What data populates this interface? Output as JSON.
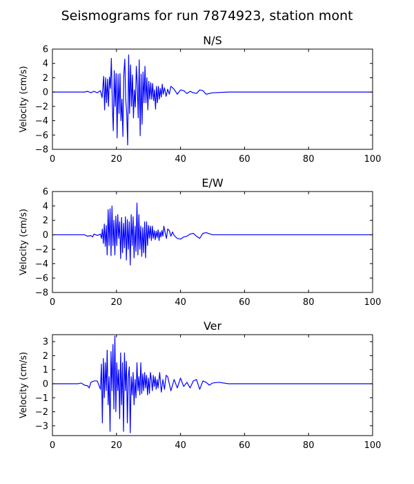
{
  "figure": {
    "title": "Seismograms for run 7874923, station mont"
  },
  "chart_data": [
    {
      "type": "line",
      "title": "N/S",
      "xlabel": "",
      "ylabel": "Velocity (cm/s)",
      "xlim": [
        0,
        100
      ],
      "ylim": [
        -8,
        6
      ],
      "xticks": [
        0,
        20,
        40,
        60,
        80,
        100
      ],
      "yticks": [
        -8,
        -6,
        -4,
        -2,
        0,
        2,
        4,
        6
      ],
      "grid": false,
      "color": "#0000ff",
      "series": [
        {
          "x": [
            0,
            10,
            11,
            12,
            13,
            14,
            15,
            15.5,
            16,
            16.3,
            16.6,
            16.9,
            17.2,
            17.5,
            17.8,
            18.1,
            18.4,
            18.7,
            19,
            19.3,
            19.6,
            19.9,
            20.2,
            20.5,
            20.8,
            21.1,
            21.4,
            21.7,
            22,
            22.3,
            22.6,
            22.9,
            23.2,
            23.5,
            23.8,
            24.1,
            24.4,
            24.7,
            25,
            25.3,
            25.6,
            25.9,
            26.2,
            26.5,
            26.8,
            27.1,
            27.4,
            27.7,
            28,
            28.3,
            28.6,
            28.9,
            29.2,
            29.5,
            29.8,
            30.1,
            30.4,
            30.7,
            31,
            31.3,
            31.6,
            31.9,
            32.2,
            32.5,
            32.8,
            33.1,
            33.4,
            33.7,
            34,
            34.3,
            34.6,
            35,
            35.5,
            36,
            36.5,
            37,
            38,
            39,
            40,
            41,
            42,
            43,
            44,
            45,
            46,
            47,
            48,
            50,
            55,
            60,
            100
          ],
          "y": [
            0,
            0,
            0.1,
            -0.1,
            0.1,
            -0.1,
            0.2,
            -0.8,
            2.2,
            -2.5,
            2,
            -1.5,
            1.8,
            -2,
            2.1,
            0.5,
            4.7,
            -1.5,
            -5.4,
            3,
            -2,
            2.6,
            -6.4,
            2.5,
            -3,
            2.6,
            -4,
            -1,
            -6.2,
            2.5,
            4.6,
            -1,
            -3,
            -7.4,
            5.2,
            -3,
            3.8,
            -2,
            2.4,
            -3.6,
            0.3,
            -2.1,
            3.6,
            1,
            -3.6,
            4.5,
            -6.1,
            2.5,
            -4.5,
            2.8,
            -1.5,
            3.6,
            -1.5,
            2,
            -2.5,
            1.5,
            -1,
            1.3,
            -1,
            1.2,
            -1.2,
            0.3,
            -2.4,
            0.8,
            -1.5,
            0.8,
            -1,
            0.5,
            -0.7,
            1.1,
            -0.3,
            0.6,
            -0.6,
            0.4,
            -0.3,
            0.8,
            0.4,
            -0.3,
            0.3,
            0.2,
            -0.2,
            0.1,
            -0.1,
            -0.2,
            0.3,
            0.2,
            -0.3,
            -0.1,
            0,
            0,
            0
          ]
        }
      ]
    },
    {
      "type": "line",
      "title": "E/W",
      "xlabel": "",
      "ylabel": "Velocity (cm/s)",
      "xlim": [
        0,
        100
      ],
      "ylim": [
        -8,
        6
      ],
      "xticks": [
        0,
        20,
        40,
        60,
        80,
        100
      ],
      "yticks": [
        -8,
        -6,
        -4,
        -2,
        0,
        2,
        4,
        6
      ],
      "grid": false,
      "color": "#0000ff",
      "series": [
        {
          "x": [
            0,
            10,
            11,
            12,
            12.5,
            13,
            14,
            15,
            15.3,
            15.6,
            15.9,
            16.2,
            16.5,
            16.8,
            17.1,
            17.4,
            17.7,
            18,
            18.3,
            18.6,
            18.9,
            19.2,
            19.5,
            19.8,
            20.1,
            20.4,
            20.7,
            21,
            21.3,
            21.6,
            21.9,
            22.2,
            22.5,
            22.8,
            23.1,
            23.4,
            23.7,
            24,
            24.3,
            24.6,
            24.9,
            25.2,
            25.5,
            25.8,
            26.1,
            26.4,
            26.7,
            27,
            27.3,
            27.6,
            27.9,
            28.2,
            28.5,
            28.8,
            29.1,
            29.4,
            29.7,
            30,
            30.3,
            30.6,
            30.9,
            31.2,
            31.5,
            31.8,
            32.1,
            32.4,
            32.7,
            33,
            33.3,
            33.6,
            33.9,
            34.2,
            34.5,
            34.8,
            35.2,
            35.6,
            36,
            36.5,
            37,
            37.5,
            38,
            39,
            40,
            41,
            42,
            43,
            44,
            45,
            46,
            47,
            48,
            50,
            55,
            60,
            100
          ],
          "y": [
            0,
            0,
            -0.2,
            -0.1,
            -0.3,
            0.1,
            -0.1,
            0.1,
            -0.5,
            0.8,
            -1.2,
            1.5,
            -1.6,
            1.3,
            -2.8,
            3.5,
            -1.5,
            3.6,
            -2.9,
            4,
            -1.5,
            2,
            -2.8,
            2.6,
            -1.5,
            2.8,
            -0.5,
            1.8,
            -3.3,
            2.4,
            -2.5,
            1.6,
            -1.8,
            2.5,
            -3.5,
            2.1,
            -2,
            1.8,
            -4.2,
            2.8,
            -1.5,
            2.5,
            -3.2,
            1.2,
            -2.3,
            4.4,
            -2.8,
            2.8,
            -2,
            1.2,
            -3,
            1,
            -2.5,
            1.8,
            -3.2,
            1.8,
            -1.5,
            1.3,
            -0.5,
            1.2,
            -0.8,
            1.2,
            -0.5,
            0.6,
            -0.7,
            0.5,
            -0.4,
            0.7,
            -0.8,
            0.4,
            -0.3,
            0.6,
            -0.2,
            1.2,
            0.3,
            -0.5,
            0.8,
            0.6,
            -0.2,
            0.4,
            -0.1,
            -0.5,
            -0.6,
            -0.3,
            -0.2,
            0.1,
            0.2,
            -0.2,
            -0.5,
            0.2,
            0.3,
            0,
            0,
            0,
            0
          ]
        }
      ]
    },
    {
      "type": "line",
      "title": "Ver",
      "xlabel": "",
      "ylabel": "Velocity (cm/s)",
      "xlim": [
        0,
        100
      ],
      "ylim": [
        -3.7,
        3.5
      ],
      "xticks": [
        0,
        20,
        40,
        60,
        80,
        100
      ],
      "yticks": [
        -3,
        -2,
        -1,
        0,
        1,
        2,
        3
      ],
      "grid": false,
      "color": "#0000ff",
      "series": [
        {
          "x": [
            0,
            8,
            9,
            10,
            11,
            11.5,
            12,
            13,
            14,
            15,
            15.3,
            15.6,
            15.9,
            16.2,
            16.5,
            16.8,
            17.1,
            17.4,
            17.7,
            18,
            18.3,
            18.6,
            18.9,
            19.2,
            19.5,
            19.8,
            20.1,
            20.4,
            20.7,
            21,
            21.3,
            21.6,
            21.9,
            22.2,
            22.5,
            22.8,
            23.1,
            23.4,
            23.7,
            24,
            24.3,
            24.6,
            24.9,
            25.2,
            25.5,
            25.8,
            26.1,
            26.4,
            26.7,
            27,
            27.3,
            27.6,
            27.9,
            28.2,
            28.5,
            28.8,
            29.1,
            29.4,
            29.7,
            30,
            30.3,
            30.6,
            30.9,
            31.2,
            31.5,
            31.8,
            32.1,
            32.4,
            32.7,
            33,
            33.5,
            34,
            34.5,
            35,
            35.5,
            36,
            37,
            38,
            39,
            40,
            41,
            42,
            43,
            44,
            45,
            46,
            47,
            48,
            49,
            50,
            52,
            55,
            60,
            100
          ],
          "y": [
            0,
            0,
            0.05,
            -0.1,
            -0.15,
            -0.3,
            0.1,
            0.2,
            0.2,
            -0.4,
            1.4,
            -2.8,
            1.8,
            -1,
            1.5,
            -0.5,
            2.4,
            -1.5,
            0.5,
            -3.4,
            2.3,
            -0.5,
            2.8,
            -1.8,
            3.4,
            -2,
            1.5,
            -0.5,
            1,
            -2.5,
            2.2,
            -1.5,
            1.5,
            -3.4,
            2.2,
            -0.5,
            1.6,
            -2.8,
            0.5,
            1.2,
            -3.5,
            0.5,
            -0.8,
            0.8,
            -1.5,
            0.3,
            -1,
            1.5,
            -0.5,
            0.5,
            -0.8,
            1.5,
            -0.7,
            0.7,
            -0.5,
            0.8,
            -0.3,
            0.6,
            -0.8,
            0.4,
            -0.7,
            0.8,
            0.3,
            -0.5,
            0.6,
            -0.2,
            0.5,
            -0.4,
            0.3,
            -0.3,
            0.8,
            -0.6,
            0.3,
            -0.4,
            0.6,
            0.5,
            -0.5,
            0.3,
            -0.3,
            0.4,
            -0.2,
            0.1,
            -0.3,
            0.2,
            0.3,
            -0.4,
            0.2,
            0.1,
            -0.1,
            0.05,
            0.1,
            0,
            0,
            0
          ]
        }
      ]
    }
  ]
}
